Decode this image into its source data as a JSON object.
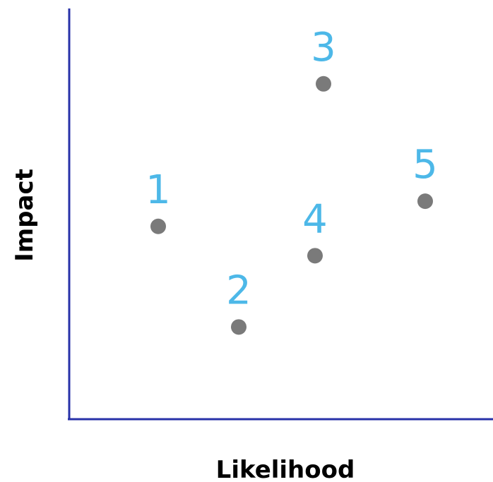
{
  "chart_data": {
    "type": "scatter",
    "title": "",
    "xlabel": "Likelihood",
    "ylabel": "Impact",
    "xlim": [
      0,
      10
    ],
    "ylim": [
      0,
      10
    ],
    "grid": false,
    "legend": "none",
    "points": [
      {
        "label": "1",
        "x": 2.1,
        "y": 4.6
      },
      {
        "label": "2",
        "x": 4.0,
        "y": 2.2
      },
      {
        "label": "3",
        "x": 6.0,
        "y": 8.0
      },
      {
        "label": "4",
        "x": 5.8,
        "y": 3.9
      },
      {
        "label": "5",
        "x": 8.4,
        "y": 5.2
      }
    ],
    "colors": {
      "axis": "#2832a8",
      "marker": "#7a7a7a",
      "label": "#4db8e8",
      "axis_title": "#000000"
    }
  }
}
